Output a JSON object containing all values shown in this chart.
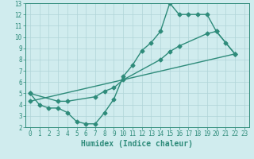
{
  "line1_x": [
    0,
    1,
    2,
    3,
    4,
    5,
    6,
    7,
    8,
    9,
    10,
    11,
    12,
    13,
    14,
    15,
    16,
    17,
    18,
    19,
    20,
    21,
    22
  ],
  "line1_y": [
    5.0,
    4.0,
    3.7,
    3.7,
    3.3,
    2.5,
    2.3,
    2.3,
    3.3,
    4.5,
    6.5,
    7.5,
    8.8,
    9.5,
    10.5,
    13.0,
    12.0,
    12.0,
    12.0,
    12.0,
    10.5,
    9.5,
    8.5
  ],
  "line2_x": [
    0,
    3,
    4,
    7,
    8,
    9,
    10,
    14,
    15,
    16,
    19,
    20,
    22
  ],
  "line2_y": [
    5.0,
    4.3,
    4.3,
    4.7,
    5.2,
    5.5,
    6.2,
    8.0,
    8.7,
    9.2,
    10.3,
    10.5,
    8.5
  ],
  "line3_x": [
    0,
    22
  ],
  "line3_y": [
    4.3,
    8.5
  ],
  "color": "#2e8b7a",
  "bg_color": "#d0ecee",
  "grid_color": "#b0d4d8",
  "xlabel": "Humidex (Indice chaleur)",
  "xlim": [
    -0.5,
    23.5
  ],
  "ylim": [
    2,
    13
  ],
  "xticks": [
    0,
    1,
    2,
    3,
    4,
    5,
    6,
    7,
    8,
    9,
    10,
    11,
    12,
    13,
    14,
    15,
    16,
    17,
    18,
    19,
    20,
    21,
    22,
    23
  ],
  "yticks": [
    2,
    3,
    4,
    5,
    6,
    7,
    8,
    9,
    10,
    11,
    12,
    13
  ],
  "marker": "D",
  "markersize": 2.5,
  "linewidth": 1.0,
  "xlabel_fontsize": 7,
  "tick_fontsize": 5.5
}
